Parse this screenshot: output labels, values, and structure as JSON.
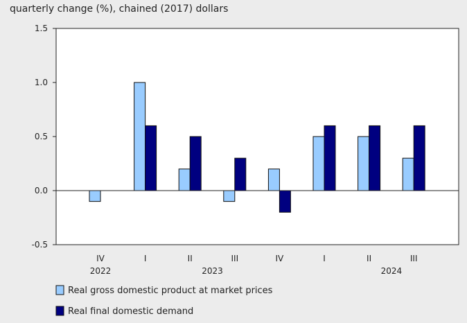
{
  "chart_data": {
    "type": "bar",
    "ylabel": "quarterly change (%), chained (2017) dollars",
    "ylim": [
      -0.5,
      1.5
    ],
    "yticks": [
      1.5,
      1.0,
      0.5,
      0.0,
      -0.5
    ],
    "ytick_labels": [
      "1.5",
      "1.0",
      "0.5",
      "0.0",
      "-0.5"
    ],
    "categories": [
      "IV",
      "I",
      "II",
      "III",
      "IV",
      "I",
      "II",
      "III"
    ],
    "year_labels": [
      {
        "label": "2022",
        "category_index": 0
      },
      {
        "label": "2023",
        "category_index": 2.5
      },
      {
        "label": "2024",
        "category_index": 6.5
      }
    ],
    "legend_placement": "bottom-left",
    "series": [
      {
        "name": "Real gross domestic product at market prices",
        "color": "#99ccff",
        "values": [
          -0.1,
          1.0,
          0.2,
          -0.1,
          0.2,
          0.5,
          0.5,
          0.3
        ]
      },
      {
        "name": "Real final domestic demand",
        "color": "#000080",
        "values": [
          null,
          0.6,
          0.5,
          0.3,
          -0.2,
          0.6,
          0.6,
          0.6
        ]
      }
    ]
  }
}
